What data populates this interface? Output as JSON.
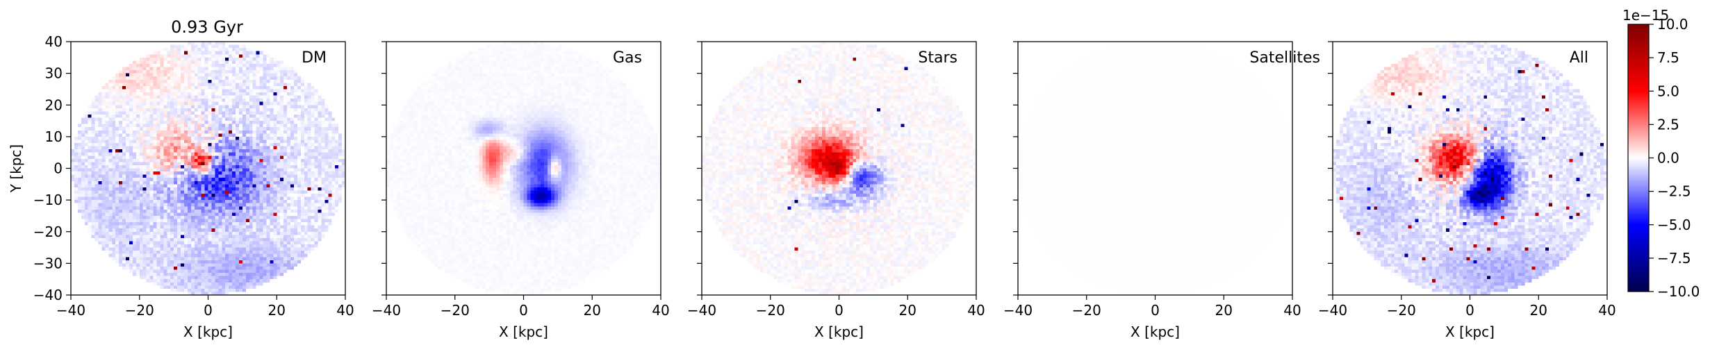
{
  "chart_data": {
    "type": "heatmap",
    "title": "0.93 Gyr",
    "xlabel": "X [kpc]",
    "ylabel": "Y [kpc]",
    "xlim": [
      -40,
      40
    ],
    "ylim": [
      -40,
      40
    ],
    "xticks": [
      -40,
      -20,
      0,
      20,
      40
    ],
    "yticks": [
      -40,
      -30,
      -20,
      -10,
      0,
      10,
      20,
      30,
      40
    ],
    "tick_labels_x": [
      "−40",
      "−20",
      "0",
      "20",
      "40"
    ],
    "tick_labels_y": [
      "−40",
      "−30",
      "−20",
      "−10",
      "0",
      "10",
      "20",
      "30",
      "40"
    ],
    "colormap": "seismic",
    "colorbar": {
      "range": [
        -10.0,
        10.0
      ],
      "scale_label": "1e−15",
      "ticks": [
        10.0,
        7.5,
        5.0,
        2.5,
        0.0,
        -2.5,
        -5.0,
        -7.5,
        -10.0
      ],
      "tick_labels": [
        "10.0",
        "7.5",
        "5.0",
        "2.5",
        "0.0",
        "−2.5",
        "−5.0",
        "−7.5",
        "−10.0"
      ]
    },
    "panels": [
      {
        "label": "DM",
        "disk_radius": 40,
        "background": -0.4,
        "features": [
          {
            "kind": "blob",
            "x": 3,
            "y": -3,
            "rx": 13,
            "ry": 11,
            "amp": -3.5
          },
          {
            "kind": "blob",
            "x": -8,
            "y": 5,
            "rx": 9,
            "ry": 8,
            "amp": 3
          },
          {
            "kind": "blob",
            "x": -20,
            "y": 30,
            "rx": 15,
            "ry": 9,
            "amp": 1.2
          },
          {
            "kind": "blob",
            "x": 10,
            "y": -32,
            "rx": 20,
            "ry": 8,
            "amp": -1.2
          },
          {
            "kind": "blob",
            "x": -25,
            "y": -10,
            "rx": 12,
            "ry": 14,
            "amp": -0.6
          },
          {
            "kind": "blob",
            "x": -2,
            "y": 2,
            "rx": 3,
            "ry": 3,
            "amp": 6
          }
        ],
        "noise": 1.5,
        "hot_pixels": 0.012
      },
      {
        "label": "Gas",
        "disk_radius": 40,
        "background": -0.1,
        "features": [
          {
            "kind": "blob",
            "x": 6,
            "y": 1,
            "rx": 7,
            "ry": 10,
            "amp": -4
          },
          {
            "kind": "blob",
            "x": 5,
            "y": -9,
            "rx": 4,
            "ry": 3,
            "amp": -6
          },
          {
            "kind": "blob",
            "x": -9,
            "y": 3,
            "rx": 3,
            "ry": 7,
            "amp": 3.5
          },
          {
            "kind": "blob",
            "x": 9,
            "y": 0,
            "rx": 2,
            "ry": 4,
            "amp": 4
          },
          {
            "kind": "blob",
            "x": -3,
            "y": 5,
            "rx": 4,
            "ry": 3,
            "amp": 1.5
          },
          {
            "kind": "blob",
            "x": -10,
            "y": 12,
            "rx": 4,
            "ry": 3,
            "amp": -2
          }
        ],
        "noise": 0.25,
        "hot_pixels": 0.0
      },
      {
        "label": "Stars",
        "disk_radius": 40,
        "background": 0.0,
        "features": [
          {
            "kind": "blob",
            "x": -3,
            "y": 3,
            "rx": 8,
            "ry": 7,
            "amp": 6
          },
          {
            "kind": "blob",
            "x": 7,
            "y": -3,
            "rx": 5,
            "ry": 5,
            "amp": -4
          },
          {
            "kind": "blob",
            "x": -2,
            "y": -10,
            "rx": 9,
            "ry": 3,
            "amp": -1.5
          },
          {
            "kind": "blob",
            "x": 0,
            "y": 0,
            "rx": 3,
            "ry": 3,
            "amp": 4
          }
        ],
        "noise": 1.0,
        "hot_pixels": 0.002
      },
      {
        "label": "Satellites",
        "disk_radius": 40,
        "background": 0.03,
        "features": [],
        "noise": 0.02,
        "hot_pixels": 0.0
      },
      {
        "label": "All",
        "disk_radius": 40,
        "background": -0.4,
        "features": [
          {
            "kind": "blob",
            "x": -4,
            "y": 3,
            "rx": 8,
            "ry": 7,
            "amp": 6
          },
          {
            "kind": "blob",
            "x": 6,
            "y": -3,
            "rx": 6,
            "ry": 9,
            "amp": -7
          },
          {
            "kind": "blob",
            "x": 2,
            "y": -9,
            "rx": 4,
            "ry": 3,
            "amp": -5
          },
          {
            "kind": "blob",
            "x": -20,
            "y": 30,
            "rx": 15,
            "ry": 9,
            "amp": 1.2
          },
          {
            "kind": "blob",
            "x": 10,
            "y": -32,
            "rx": 20,
            "ry": 8,
            "amp": -1.2
          },
          {
            "kind": "blob",
            "x": -25,
            "y": -10,
            "rx": 12,
            "ry": 14,
            "amp": -0.6
          }
        ],
        "noise": 1.5,
        "hot_pixels": 0.012
      }
    ]
  }
}
